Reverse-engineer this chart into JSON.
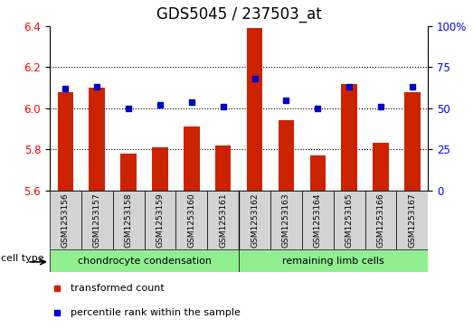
{
  "title": "GDS5045 / 237503_at",
  "samples": [
    "GSM1253156",
    "GSM1253157",
    "GSM1253158",
    "GSM1253159",
    "GSM1253160",
    "GSM1253161",
    "GSM1253162",
    "GSM1253163",
    "GSM1253164",
    "GSM1253165",
    "GSM1253166",
    "GSM1253167"
  ],
  "transformed_count": [
    6.08,
    6.1,
    5.78,
    5.81,
    5.91,
    5.82,
    6.39,
    5.94,
    5.77,
    6.12,
    5.83,
    6.08
  ],
  "percentile_rank": [
    62,
    63,
    50,
    52,
    54,
    51,
    68,
    55,
    50,
    63,
    51,
    63
  ],
  "ylim_left": [
    5.6,
    6.4
  ],
  "ylim_right": [
    0,
    100
  ],
  "yticks_left": [
    5.6,
    5.8,
    6.0,
    6.2,
    6.4
  ],
  "yticks_right": [
    0,
    25,
    50,
    75,
    100
  ],
  "ytick_labels_right": [
    "0",
    "25",
    "50",
    "75",
    "100%"
  ],
  "grid_lines": [
    5.8,
    6.0,
    6.2
  ],
  "groups": [
    {
      "label": "chondrocyte condensation",
      "start": 0,
      "end": 6,
      "color": "#90EE90"
    },
    {
      "label": "remaining limb cells",
      "start": 6,
      "end": 12,
      "color": "#90EE90"
    }
  ],
  "cell_type_label": "cell type",
  "legend_items": [
    {
      "label": "transformed count",
      "color": "#CC2200"
    },
    {
      "label": "percentile rank within the sample",
      "color": "#0000CC"
    }
  ],
  "bar_color": "#CC2200",
  "dot_color": "#0000CC",
  "plot_bg_color": "#FFFFFF",
  "bar_width": 0.5,
  "title_fontsize": 12,
  "tick_fontsize": 8.5,
  "label_fontsize": 8,
  "sample_fontsize": 6.5
}
